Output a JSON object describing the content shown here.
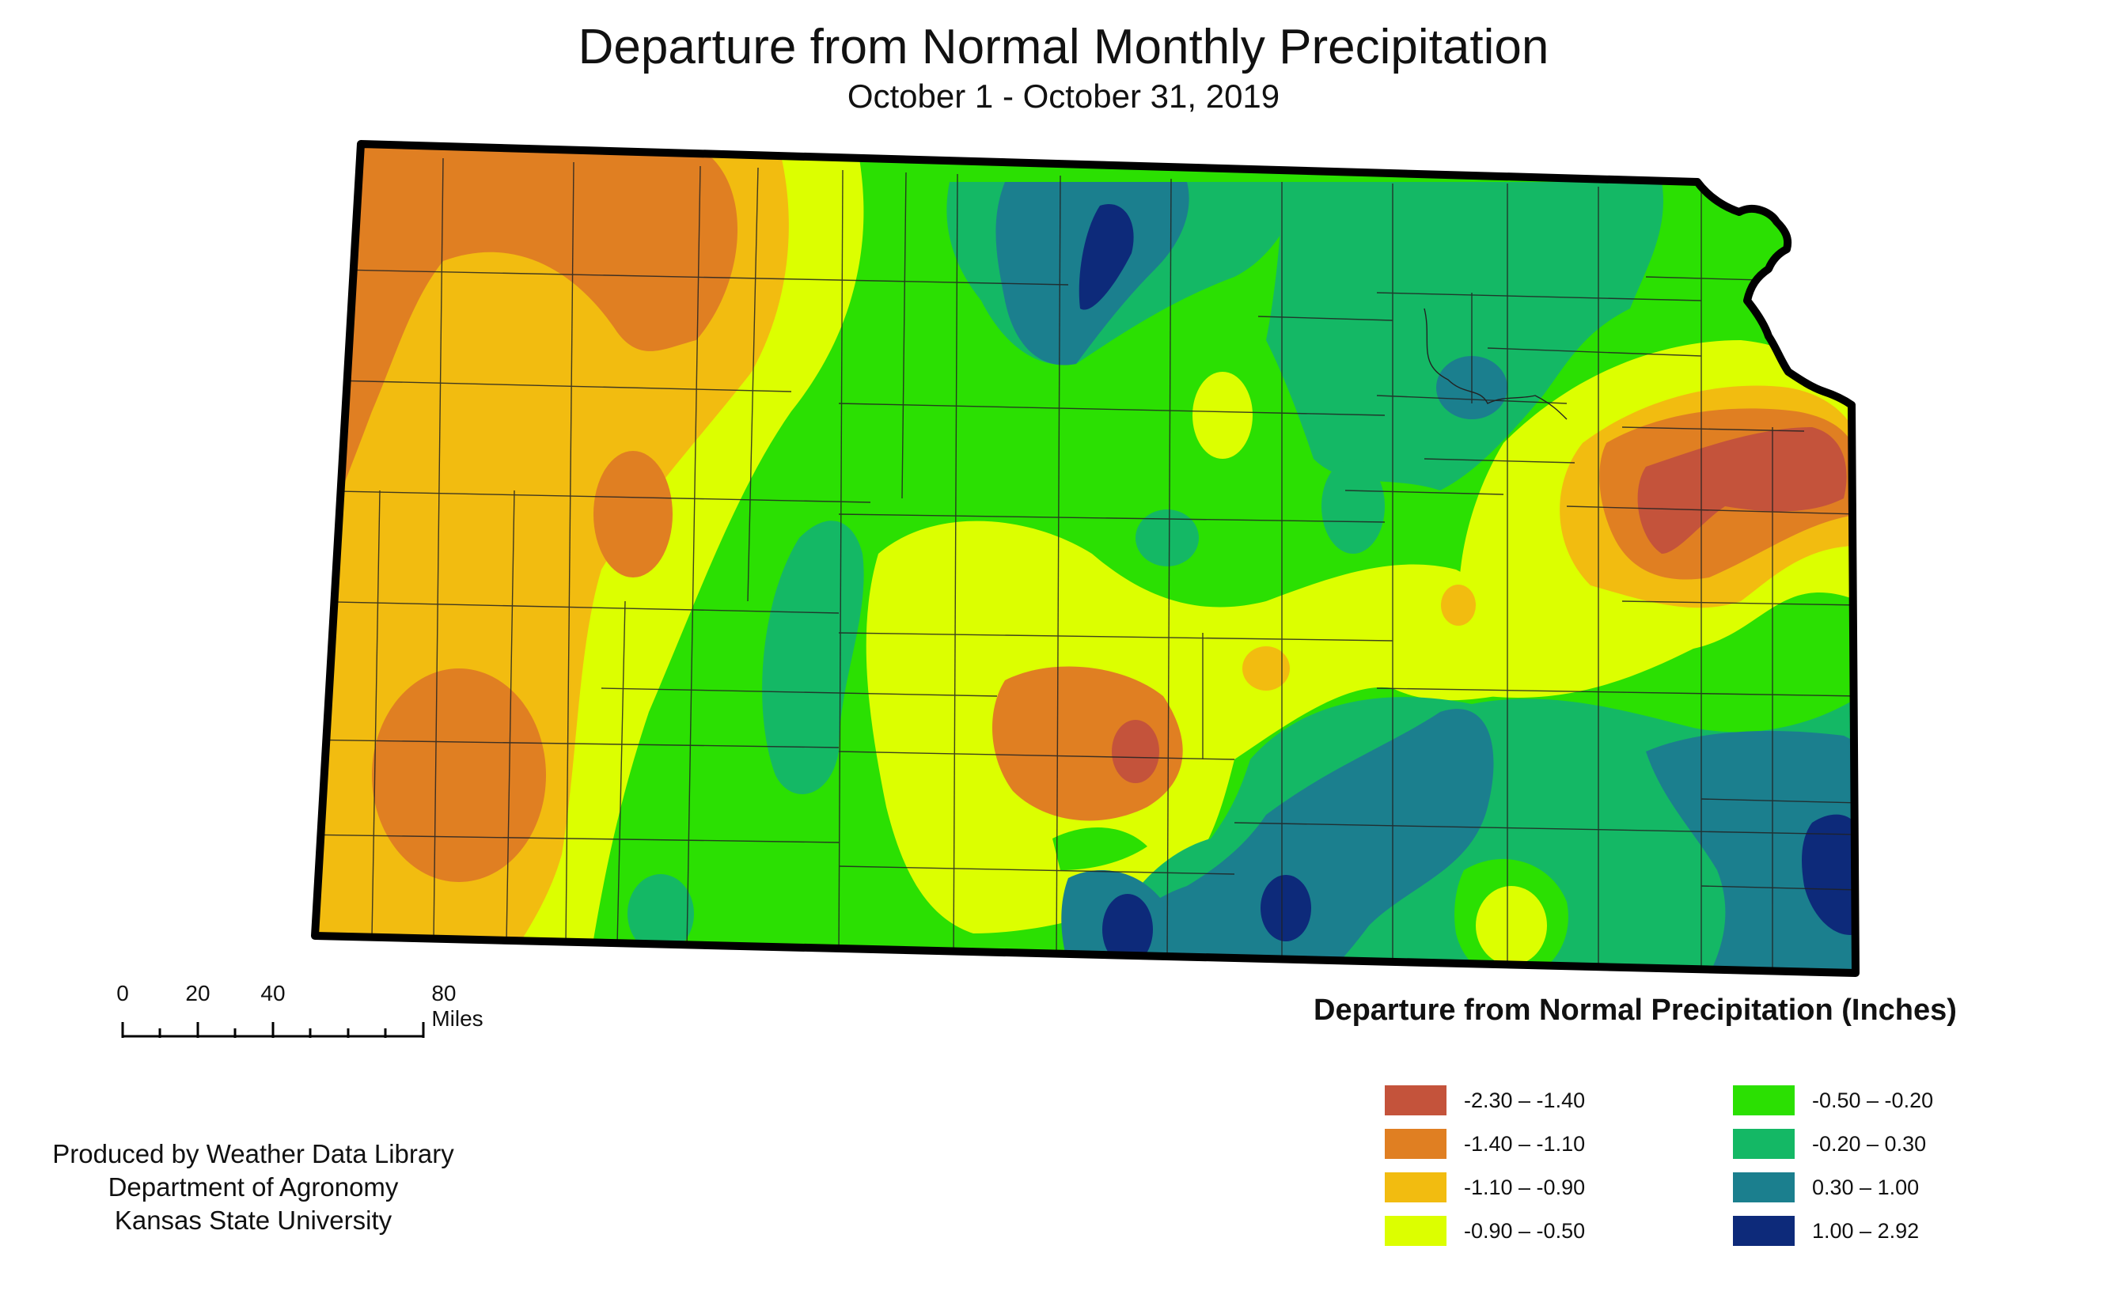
{
  "header": {
    "title": "Departure from Normal Monthly Precipitation",
    "subtitle": "October 1 - October 31, 2019"
  },
  "legend": {
    "title": "Departure from Normal Precipitation (Inches)",
    "items": [
      {
        "label": "-2.30 – -1.40",
        "color": "#c4533b"
      },
      {
        "label": "-1.40 – -1.10",
        "color": "#e07f22"
      },
      {
        "label": "-1.10 – -0.90",
        "color": "#f2bc10"
      },
      {
        "label": "-0.90 – -0.50",
        "color": "#dcff00"
      },
      {
        "label": "-0.50 – -0.20",
        "color": "#2be002"
      },
      {
        "label": "-0.20 – 0.30",
        "color": "#14b865"
      },
      {
        "label": "0.30 – 1.00",
        "color": "#1b7f8e"
      },
      {
        "label": "1.00 – 2.92",
        "color": "#0d2a7a"
      }
    ]
  },
  "scalebar": {
    "labels": [
      "0",
      "20",
      "40",
      "80 Miles"
    ]
  },
  "credits": {
    "line1": "Produced by Weather Data Library",
    "line2": "Department of Agronomy",
    "line3": "Kansas State University"
  }
}
